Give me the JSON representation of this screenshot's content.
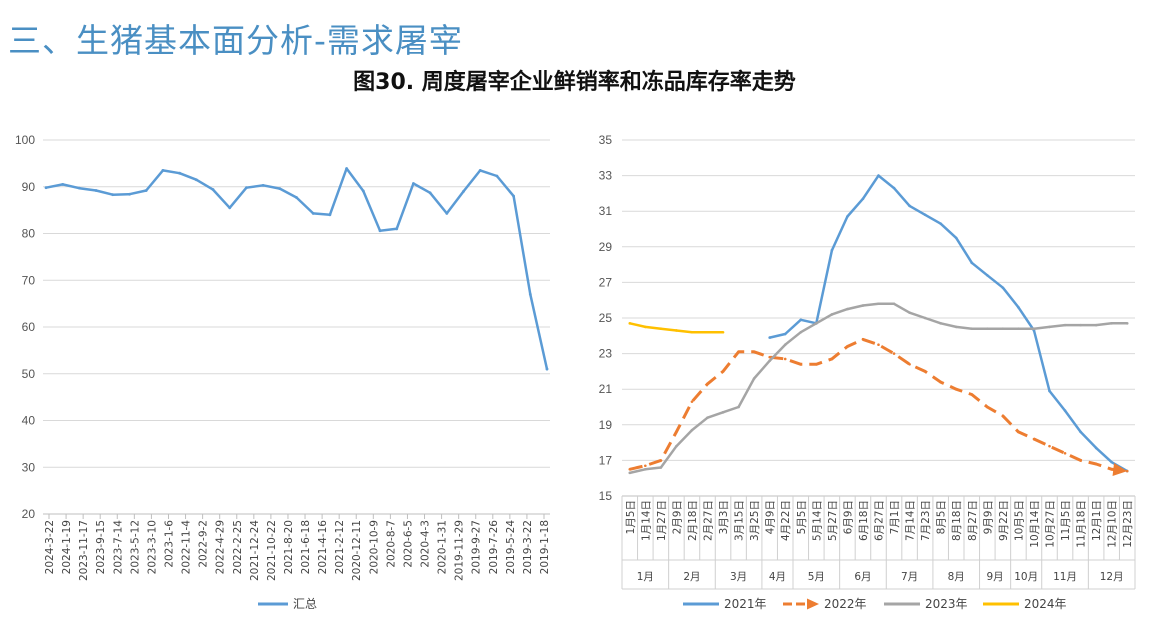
{
  "header": {
    "section_title": "三、生猪基本面分析-需求屠宰",
    "figure_title": "图30. 周度屠宰企业鲜销率和冻品库存率走势"
  },
  "chart_data": [
    {
      "type": "line",
      "ylim": [
        20,
        100
      ],
      "yticks": [
        20,
        30,
        40,
        50,
        60,
        70,
        80,
        90,
        100
      ],
      "grid": true,
      "legend_position": "bottom",
      "x": [
        "2024-3-22",
        "2024-1-19",
        "2023-11-17",
        "2023-9-15",
        "2023-7-14",
        "2023-5-12",
        "2023-3-10",
        "2023-1-6",
        "2022-11-4",
        "2022-9-2",
        "2022-6-30",
        "2022-4-29",
        "2022-2-25",
        "2021-12-24",
        "2021-10-22",
        "2021-8-20",
        "2021-6-18",
        "2021-4-16",
        "2021-2-12",
        "2020-12-11",
        "2020-10-9",
        "2020-8-7",
        "2020-6-5",
        "2020-4-3",
        "2020-1-31",
        "2019-11-29",
        "2019-9-27",
        "2019-7-26",
        "2019-5-24",
        "2019-3-22",
        "2019-1-18"
      ],
      "xticks": [
        "2024-3-22",
        "2024-1-19",
        "2023-11-17",
        "2023-9-15",
        "2023-7-14",
        "2023-5-12",
        "2023-3-10",
        "2023-1-6",
        "2022-11-4",
        "2022-9-2",
        "2022-4-29",
        "2022-2-25",
        "2021-12-24",
        "2021-10-22",
        "2021-8-20",
        "2021-6-18",
        "2021-4-16",
        "2021-2-12",
        "2020-12-11",
        "2020-10-9",
        "2020-8-7",
        "2020-6-5",
        "2020-4-3",
        "2020-1-31",
        "2019-11-29",
        "2019-9-27",
        "2019-7-26",
        "2019-5-24",
        "2019-3-22",
        "2019-1-18"
      ],
      "series": [
        {
          "name": "汇总",
          "color": "#5b9bd5",
          "values": [
            89.8,
            90.5,
            89.7,
            89.2,
            88.3,
            88.4,
            89.2,
            93.5,
            92.9,
            91.5,
            89.4,
            85.5,
            89.8,
            90.3,
            89.6,
            87.7,
            84.3,
            84.0,
            93.9,
            89.1,
            80.6,
            81.0,
            90.7,
            88.7,
            84.3,
            89.0,
            93.5,
            92.3,
            88.0,
            67.0,
            51.0
          ]
        }
      ]
    },
    {
      "type": "line",
      "ylim": [
        15,
        35
      ],
      "yticks": [
        15,
        17,
        19,
        21,
        23,
        25,
        27,
        29,
        31,
        33,
        35
      ],
      "grid": true,
      "legend_position": "bottom",
      "x": [
        "1月5日",
        "1月14日",
        "1月27日",
        "2月9日",
        "2月18日",
        "2月27日",
        "3月3日",
        "3月15日",
        "3月25日",
        "4月9日",
        "4月22日",
        "5月5日",
        "5月14日",
        "5月27日",
        "6月9日",
        "6月18日",
        "6月27日",
        "7月1日",
        "7月14日",
        "7月23日",
        "8月5日",
        "8月18日",
        "8月27日",
        "9月9日",
        "9月22日",
        "10月5日",
        "10月14日",
        "10月27日",
        "11月5日",
        "11月18日",
        "12月1日",
        "12月10日",
        "12月23日"
      ],
      "x_groups": [
        "1月",
        "2月",
        "3月",
        "4月",
        "5月",
        "6月",
        "7月",
        "8月",
        "9月",
        "10月",
        "11月",
        "12月"
      ],
      "series": [
        {
          "name": "2021年",
          "color": "#5b9bd5",
          "style": "solid",
          "values": [
            null,
            null,
            null,
            null,
            null,
            null,
            null,
            null,
            null,
            23.9,
            24.1,
            24.9,
            24.7,
            28.8,
            30.7,
            31.7,
            33.0,
            32.3,
            31.3,
            30.8,
            30.3,
            29.5,
            28.1,
            27.4,
            26.7,
            25.6,
            24.3,
            20.9,
            19.8,
            18.6,
            17.7,
            16.9,
            16.4
          ]
        },
        {
          "name": "2022年",
          "color": "#ed7d31",
          "style": "dashed",
          "values": [
            16.5,
            16.7,
            17.0,
            18.6,
            20.3,
            21.3,
            22.0,
            23.1,
            23.1,
            22.8,
            22.7,
            22.4,
            22.4,
            22.7,
            23.4,
            23.8,
            23.5,
            23.0,
            22.4,
            22.0,
            21.4,
            21.0,
            20.7,
            20.0,
            19.5,
            18.6,
            18.2,
            17.8,
            17.4,
            17.0,
            16.8,
            16.5,
            16.4
          ]
        },
        {
          "name": "2023年",
          "color": "#a5a5a5",
          "style": "solid",
          "values": [
            16.3,
            16.5,
            16.6,
            17.8,
            18.7,
            19.4,
            19.7,
            20.0,
            21.6,
            22.6,
            23.5,
            24.2,
            24.7,
            25.2,
            25.5,
            25.7,
            25.8,
            25.8,
            25.3,
            25.0,
            24.7,
            24.5,
            24.4,
            24.4,
            24.4,
            24.4,
            24.4,
            24.5,
            24.6,
            24.6,
            24.6,
            24.7,
            24.7
          ]
        },
        {
          "name": "2024年",
          "color": "#ffc000",
          "style": "solid",
          "values": [
            24.7,
            24.5,
            24.4,
            24.3,
            24.2,
            24.2,
            24.2,
            null,
            null,
            null,
            null,
            null,
            null,
            null,
            null,
            null,
            null,
            null,
            null,
            null,
            null,
            null,
            null,
            null,
            null,
            null,
            null,
            null,
            null,
            null,
            null,
            null,
            null
          ]
        }
      ]
    }
  ]
}
